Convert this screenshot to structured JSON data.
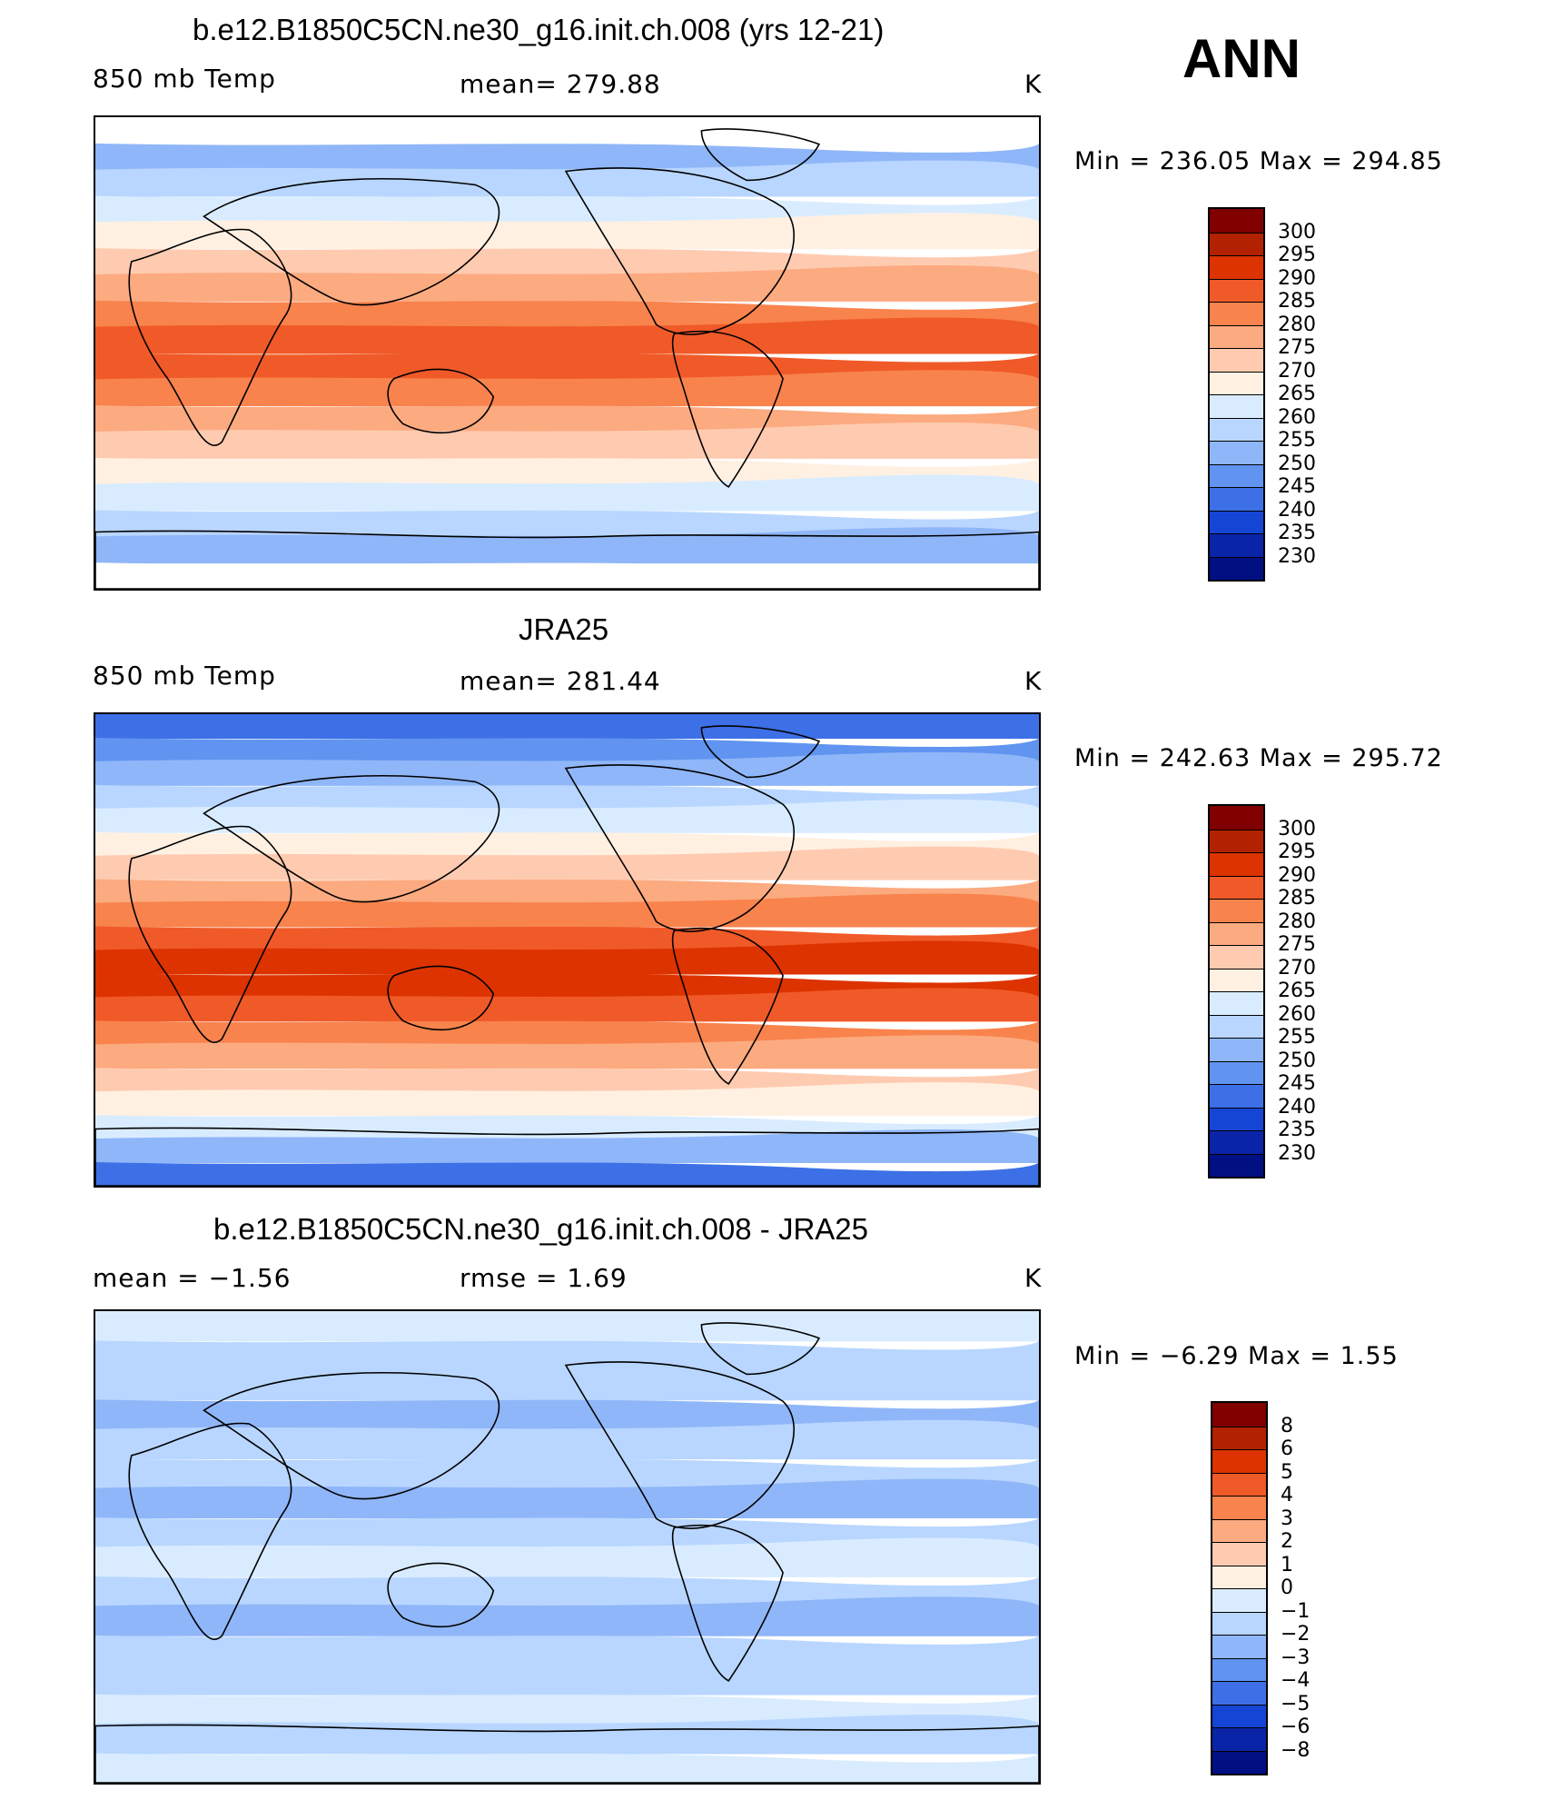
{
  "season": "ANN",
  "panels": [
    {
      "title": "b.e12.B1850C5CN.ne30_g16.init.ch.008 (yrs 12-21)",
      "left_label": "850 mb Temp",
      "center_label": "mean=  279.88",
      "units": "K",
      "minmax": "Min  =  236.05  Max  =  294.85",
      "colorbar": {
        "levels": [
          "300",
          "295",
          "290",
          "285",
          "280",
          "275",
          "270",
          "265",
          "260",
          "255",
          "250",
          "245",
          "240",
          "235",
          "230"
        ],
        "colors": [
          "#800000",
          "#b22200",
          "#dd3300",
          "#f05a28",
          "#f8834d",
          "#fcaa80",
          "#ffcbb0",
          "#fff0e2",
          "#d9ecff",
          "#b8d6ff",
          "#8fb6f8",
          "#6094f0",
          "#3d70e6",
          "#1545d4",
          "#0a24a8",
          "#001083"
        ]
      }
    },
    {
      "title": "JRA25",
      "left_label": "850 mb Temp",
      "center_label": "mean=  281.44",
      "units": "K",
      "minmax": "Min  =  242.63  Max  =  295.72",
      "colorbar": {
        "levels": [
          "300",
          "295",
          "290",
          "285",
          "280",
          "275",
          "270",
          "265",
          "260",
          "255",
          "250",
          "245",
          "240",
          "235",
          "230"
        ],
        "colors": [
          "#800000",
          "#b22200",
          "#dd3300",
          "#f05a28",
          "#f8834d",
          "#fcaa80",
          "#ffcbb0",
          "#fff0e2",
          "#d9ecff",
          "#b8d6ff",
          "#8fb6f8",
          "#6094f0",
          "#3d70e6",
          "#1545d4",
          "#0a24a8",
          "#001083"
        ]
      }
    },
    {
      "title": "b.e12.B1850C5CN.ne30_g16.init.ch.008 - JRA25",
      "left_label": "mean =    −1.56",
      "center_label": "rmse =     1.69",
      "units": "K",
      "minmax": "Min  =    −6.29  Max  =     1.55",
      "colorbar": {
        "levels": [
          "8",
          "6",
          "5",
          "4",
          "3",
          "2",
          "1",
          "0",
          "−1",
          "−2",
          "−3",
          "−4",
          "−5",
          "−6",
          "−8"
        ],
        "colors": [
          "#800000",
          "#b22200",
          "#dd3300",
          "#f05a28",
          "#f8834d",
          "#fcaa80",
          "#ffcbb0",
          "#fff0e2",
          "#d9ecff",
          "#b8d6ff",
          "#8fb6f8",
          "#6094f0",
          "#3d70e6",
          "#1545d4",
          "#0a24a8",
          "#001083"
        ]
      }
    }
  ],
  "map_fields": {
    "model_bands": [
      "#ffffff",
      "#8fb6f8",
      "#b8d6ff",
      "#d9ecff",
      "#fff0e2",
      "#ffcbb0",
      "#fcaa80",
      "#f8834d",
      "#f05a28",
      "#f05a28",
      "#f8834d",
      "#fcaa80",
      "#ffcbb0",
      "#fff0e2",
      "#d9ecff",
      "#b8d6ff",
      "#8fb6f8",
      "#ffffff"
    ],
    "obs_bands": [
      "#3d70e6",
      "#6094f0",
      "#8fb6f8",
      "#b8d6ff",
      "#d9ecff",
      "#fff0e2",
      "#ffcbb0",
      "#fcaa80",
      "#f8834d",
      "#f05a28",
      "#dd3300",
      "#dd3300",
      "#f05a28",
      "#f8834d",
      "#fcaa80",
      "#ffcbb0",
      "#fff0e2",
      "#d9ecff",
      "#8fb6f8",
      "#3d70e6"
    ],
    "diff_bands": [
      "#d9ecff",
      "#b8d6ff",
      "#b8d6ff",
      "#8fb6f8",
      "#b8d6ff",
      "#b8d6ff",
      "#8fb6f8",
      "#b8d6ff",
      "#d9ecff",
      "#b8d6ff",
      "#8fb6f8",
      "#b8d6ff",
      "#b8d6ff",
      "#d9ecff",
      "#b8d6ff",
      "#d9ecff"
    ],
    "coastline_color": "#000000"
  }
}
